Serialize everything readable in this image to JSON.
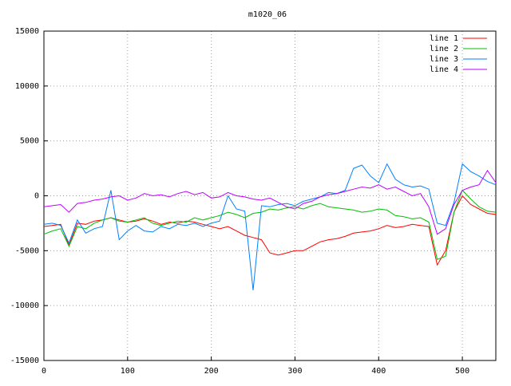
{
  "chart_data": {
    "type": "line",
    "title": "m1020_06",
    "x": [
      0,
      10,
      20,
      30,
      40,
      50,
      60,
      70,
      80,
      90,
      100,
      110,
      120,
      130,
      140,
      150,
      160,
      170,
      180,
      190,
      200,
      210,
      220,
      230,
      240,
      250,
      260,
      270,
      280,
      290,
      300,
      310,
      320,
      330,
      340,
      350,
      360,
      370,
      380,
      390,
      400,
      410,
      420,
      430,
      440,
      450,
      460,
      470,
      480,
      490,
      500,
      510,
      520,
      530,
      540
    ],
    "series": [
      {
        "name": "line 1",
        "color": "#ff0000",
        "values": [
          -2800,
          -2700,
          -2600,
          -4500,
          -2500,
          -2600,
          -2300,
          -2200,
          -2000,
          -2200,
          -2400,
          -2300,
          -2100,
          -2300,
          -2600,
          -2400,
          -2500,
          -2300,
          -2400,
          -2600,
          -2800,
          -3000,
          -2800,
          -3200,
          -3600,
          -3800,
          -4000,
          -5200,
          -5400,
          -5200,
          -5000,
          -5000,
          -4600,
          -4200,
          -4000,
          -3900,
          -3700,
          -3400,
          -3300,
          -3200,
          -3000,
          -2700,
          -2900,
          -2800,
          -2600,
          -2700,
          -2800,
          -6300,
          -5000,
          -1500,
          0,
          -800,
          -1200,
          -1600,
          -1700
        ]
      },
      {
        "name": "line 2",
        "color": "#00c000",
        "values": [
          -3500,
          -3200,
          -3000,
          -4600,
          -2800,
          -3000,
          -2500,
          -2200,
          -2000,
          -2300,
          -2400,
          -2200,
          -2000,
          -2500,
          -2700,
          -2500,
          -2300,
          -2400,
          -2000,
          -2200,
          -2000,
          -1800,
          -1500,
          -1700,
          -2000,
          -1600,
          -1500,
          -1200,
          -1300,
          -1100,
          -1000,
          -1200,
          -900,
          -700,
          -1000,
          -1100,
          -1200,
          -1300,
          -1500,
          -1400,
          -1200,
          -1300,
          -1800,
          -1900,
          -2100,
          -2000,
          -2400,
          -5800,
          -5500,
          -1500,
          500,
          -300,
          -1000,
          -1400,
          -1500
        ]
      },
      {
        "name": "line 3",
        "color": "#0080ff",
        "values": [
          -2600,
          -2500,
          -2700,
          -4300,
          -2200,
          -3400,
          -3000,
          -2800,
          500,
          -4000,
          -3200,
          -2700,
          -3200,
          -3300,
          -2800,
          -3000,
          -2600,
          -2700,
          -2500,
          -2800,
          -2500,
          -2300,
          0,
          -1200,
          -1400,
          -8600,
          -900,
          -1000,
          -800,
          -700,
          -900,
          -500,
          -300,
          -100,
          300,
          200,
          500,
          2500,
          2800,
          1800,
          1200,
          2900,
          1500,
          1000,
          800,
          900,
          600,
          -2500,
          -2700,
          -600,
          2900,
          2200,
          1800,
          1300,
          1000
        ]
      },
      {
        "name": "line 4",
        "color": "#c000ff",
        "values": [
          -1000,
          -900,
          -800,
          -1500,
          -700,
          -600,
          -400,
          -300,
          -100,
          0,
          -400,
          -200,
          200,
          0,
          100,
          -100,
          200,
          400,
          100,
          300,
          -200,
          -100,
          300,
          0,
          -100,
          -300,
          -400,
          -200,
          -600,
          -1000,
          -1200,
          -700,
          -500,
          -100,
          100,
          200,
          400,
          600,
          800,
          700,
          1000,
          600,
          800,
          400,
          0,
          200,
          -1000,
          -3500,
          -3000,
          -800,
          500,
          800,
          1000,
          2300,
          1200
        ]
      }
    ],
    "xlim": [
      0,
      540
    ],
    "ylim": [
      -15000,
      15000
    ],
    "xticks": [
      0,
      100,
      200,
      300,
      400,
      500
    ],
    "yticks": [
      -15000,
      -10000,
      -5000,
      0,
      5000,
      10000,
      15000
    ],
    "grid": true,
    "legend": "top-right"
  }
}
